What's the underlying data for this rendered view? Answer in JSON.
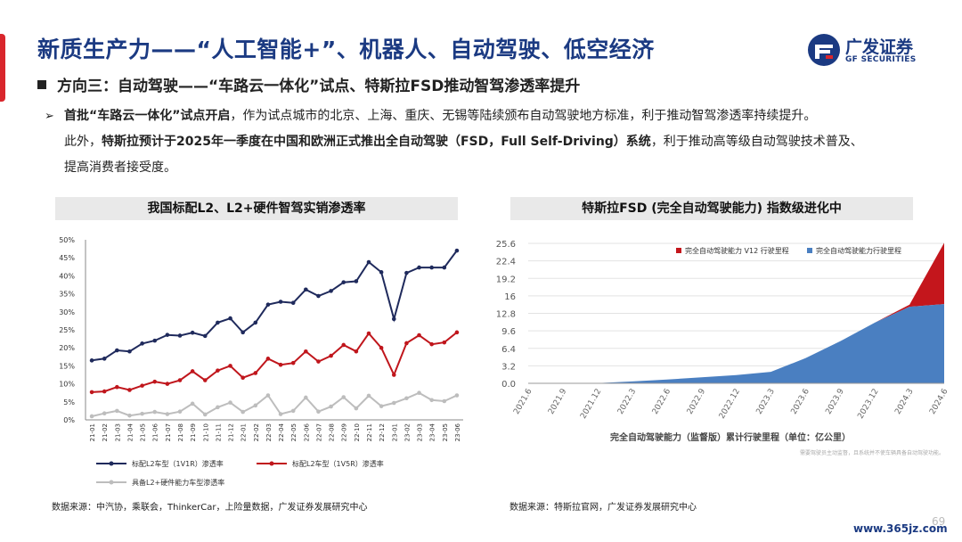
{
  "header": {
    "title": "新质生产力——“人工智能+”、机器人、自动驾驶、低空经济",
    "subtitle": "方向三：自动驾驶——“车路云一体化”试点、特斯拉FSD推动智驾渗透率提升",
    "logo_cn": "广发证券",
    "logo_en": "GF SECURITIES"
  },
  "body": {
    "arrow": "➢",
    "p1_bold": "首批“车路云一体化”试点开启",
    "p1_rest": "，作为试点城市的北京、上海、重庆、无锡等陆续颁布自动驾驶地方标准，利于推动智驾渗透率持续提升。",
    "p2_pre": "此外，",
    "p2_bold": "特斯拉预计于2025年一季度在中国和欧洲正式推出全自动驾驶（FSD，Full Self-Driving）系统",
    "p2_rest": "，利于推动高等级自动驾驶技术普及、",
    "p3": "提高消费者接受度。"
  },
  "left_panel": {
    "header": "我国标配L2、L2+硬件智驾实销渗透率",
    "source": "数据来源：中汽协，乘联会，ThinkerCar，上险量数据，广发证券发展研究中心"
  },
  "right_panel": {
    "header": "特斯拉FSD (完全自动驾驶能力) 指数级进化中",
    "source": "数据来源：特斯拉官网，广发证券发展研究中心"
  },
  "watermark": "www.365jz.com",
  "page_number": "69",
  "chart_data": [
    {
      "type": "line",
      "title": "我国标配L2、L2+硬件智驾实销渗透率",
      "x": [
        "21-01",
        "21-02",
        "21-03",
        "21-04",
        "21-05",
        "21-06",
        "21-07",
        "21-08",
        "21-09",
        "21-10",
        "21-11",
        "21-12",
        "22-01",
        "22-02",
        "22-03",
        "22-04",
        "22-05",
        "22-06",
        "22-07",
        "22-08",
        "22-09",
        "22-10",
        "22-11",
        "22-12",
        "23-01",
        "23-02",
        "23-03",
        "23-04",
        "23-05",
        "23-06"
      ],
      "y_ticks": [
        "0%",
        "5%",
        "10%",
        "15%",
        "20%",
        "25%",
        "30%",
        "35%",
        "40%",
        "45%",
        "50%"
      ],
      "ylim": [
        0,
        50
      ],
      "series": [
        {
          "name": "标配L2车型（1V1R）渗透率",
          "color": "#1f2a5c",
          "values": [
            16.5,
            17,
            19.3,
            19,
            21.2,
            22,
            23.6,
            23.4,
            24.2,
            23.3,
            27,
            28.2,
            24.3,
            27,
            32,
            32.8,
            32.5,
            36.2,
            34.4,
            35.8,
            38.2,
            38.5,
            43.8,
            41,
            28,
            40.8,
            42.3,
            42.3,
            42.3,
            47
          ]
        },
        {
          "name": "标配L2车型（1V5R）渗透率",
          "color": "#c0161c",
          "values": [
            7.7,
            7.9,
            9.1,
            8.3,
            9.5,
            10.6,
            10,
            11,
            13.5,
            11,
            13.7,
            15,
            11.7,
            13,
            17,
            15.3,
            15.8,
            19,
            16.2,
            17.8,
            20.8,
            19,
            24,
            20,
            12.5,
            21.3,
            23.5,
            21,
            21.5,
            24.3
          ]
        },
        {
          "name": "具备L2+硬件能力车型渗透率",
          "color": "#bdbdbd",
          "values": [
            1,
            1.8,
            2.5,
            1.2,
            1.7,
            2.2,
            1.6,
            2.3,
            4.5,
            1.5,
            3.5,
            4.8,
            2.2,
            4,
            6.8,
            1.6,
            2.5,
            6.2,
            2.3,
            3.7,
            6.3,
            3.2,
            6.7,
            3.8,
            4.7,
            6,
            7.5,
            5.5,
            5.2,
            6.8
          ]
        }
      ]
    },
    {
      "type": "area",
      "title": "特斯拉FSD (完全自动驾驶能力) 指数级进化中",
      "xlabel": "完全自动驾驶能力（监督版）累计行驶里程（单位：亿公里）",
      "x": [
        "2021.6",
        "2021.9",
        "2021.12",
        "2022.3",
        "2022.6",
        "2022.9",
        "2022.12",
        "2023.3",
        "2023.6",
        "2023.9",
        "2023.12",
        "2024.3",
        "2024.6"
      ],
      "y_ticks": [
        "0.0",
        "3.2",
        "6.4",
        "9.6",
        "12.8",
        "16",
        "19.2",
        "22.4",
        "25.6"
      ],
      "ylim": [
        0,
        25.6
      ],
      "note": "需要驾驶员主动监督，且系统并不使车辆具备自动驾驶功能。",
      "series": [
        {
          "name": "完全自动驾驶能力 V12 行驶里程",
          "color": "#c4161c",
          "values": [
            0,
            0,
            0,
            0,
            0,
            0,
            0,
            0,
            0,
            0,
            0,
            0.4,
            11.2
          ]
        },
        {
          "name": "完全自动驾驶能力行驶里程",
          "color": "#4a7fc1",
          "values": [
            0,
            0,
            0.05,
            0.35,
            0.7,
            1.1,
            1.5,
            2.1,
            4.6,
            7.7,
            11.1,
            14,
            14.5
          ]
        }
      ]
    }
  ]
}
